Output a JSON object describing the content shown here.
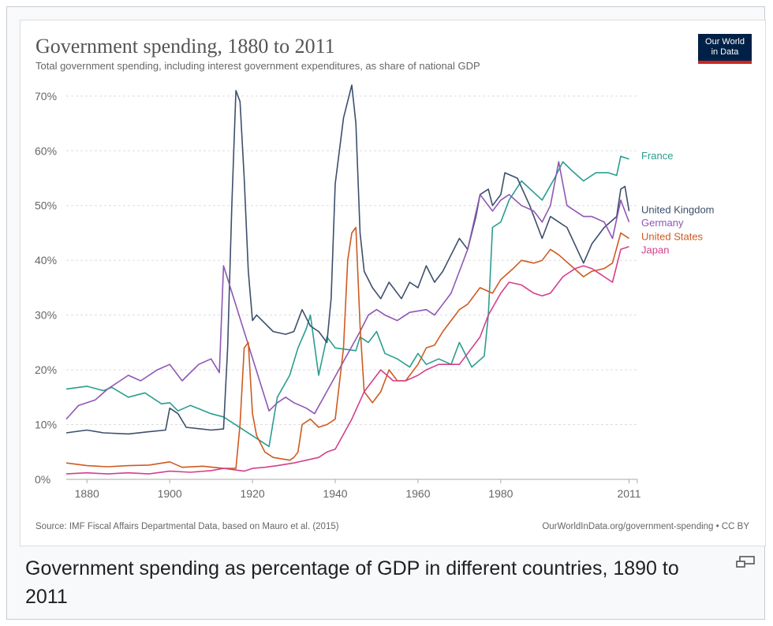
{
  "figure": {
    "caption": "Government spending as percentage of GDP in different countries, 1890 to 2011",
    "enlarge_icon": "magnify-clip-icon"
  },
  "logo": {
    "line1": "Our World",
    "line2": "in Data"
  },
  "footer": {
    "source": "Source: IMF Fiscal Affairs Departmental Data, based on Mauro et al. (2015)",
    "license": "OurWorldInData.org/government-spending • CC BY"
  },
  "chart_data": {
    "type": "line",
    "title": "Government spending, 1880 to 2011",
    "subtitle": "Total government spending, including interest government expenditures, as share of national GDP",
    "xlabel": "",
    "ylabel": "",
    "xlim": [
      1875,
      2013
    ],
    "ylim": [
      0,
      73
    ],
    "x_ticks": [
      1880,
      1900,
      1920,
      1940,
      1960,
      1980,
      2011
    ],
    "y_ticks": [
      0,
      10,
      20,
      30,
      40,
      50,
      60,
      70
    ],
    "y_tick_labels": [
      "0%",
      "10%",
      "20%",
      "30%",
      "40%",
      "50%",
      "60%",
      "70%"
    ],
    "grid": true,
    "legend": "inline-right",
    "series": [
      {
        "name": "France",
        "color": "#2a9d8f",
        "points": [
          [
            1875,
            16.5
          ],
          [
            1880,
            17
          ],
          [
            1884,
            16.2
          ],
          [
            1886,
            16.8
          ],
          [
            1890,
            15
          ],
          [
            1894,
            15.8
          ],
          [
            1898,
            13.8
          ],
          [
            1900,
            14
          ],
          [
            1902,
            12.5
          ],
          [
            1905,
            13.5
          ],
          [
            1910,
            12
          ],
          [
            1913,
            11.4
          ],
          [
            1924,
            6
          ],
          [
            1926,
            15
          ],
          [
            1929,
            19
          ],
          [
            1931,
            24
          ],
          [
            1933,
            27.5
          ],
          [
            1934,
            30
          ],
          [
            1936,
            19
          ],
          [
            1938,
            26
          ],
          [
            1940,
            24
          ],
          [
            1945,
            23.5
          ],
          [
            1946,
            26
          ],
          [
            1948,
            25
          ],
          [
            1950,
            27
          ],
          [
            1952,
            23
          ],
          [
            1955,
            22
          ],
          [
            1958,
            20.5
          ],
          [
            1960,
            23
          ],
          [
            1962,
            21
          ],
          [
            1965,
            22
          ],
          [
            1968,
            21
          ],
          [
            1970,
            25
          ],
          [
            1973,
            20.5
          ],
          [
            1976,
            22.5
          ],
          [
            1977,
            30
          ],
          [
            1978,
            46
          ],
          [
            1980,
            47
          ],
          [
            1982,
            51
          ],
          [
            1985,
            54.5
          ],
          [
            1990,
            51
          ],
          [
            1993,
            55
          ],
          [
            1995,
            58
          ],
          [
            1997,
            56.5
          ],
          [
            2000,
            54.5
          ],
          [
            2003,
            56
          ],
          [
            2006,
            56
          ],
          [
            2008,
            55.5
          ],
          [
            2009,
            59
          ],
          [
            2011,
            58.5
          ]
        ]
      },
      {
        "name": "United Kingdom",
        "color": "#3d4f6b",
        "points": [
          [
            1875,
            8.5
          ],
          [
            1880,
            9
          ],
          [
            1884,
            8.5
          ],
          [
            1890,
            8.3
          ],
          [
            1895,
            8.7
          ],
          [
            1899,
            9
          ],
          [
            1900,
            13
          ],
          [
            1902,
            12
          ],
          [
            1904,
            9.5
          ],
          [
            1910,
            9
          ],
          [
            1913,
            9.2
          ],
          [
            1914,
            24
          ],
          [
            1915,
            50
          ],
          [
            1916,
            71
          ],
          [
            1917,
            69
          ],
          [
            1918,
            55
          ],
          [
            1919,
            38
          ],
          [
            1920,
            29
          ],
          [
            1921,
            30
          ],
          [
            1925,
            27
          ],
          [
            1928,
            26.5
          ],
          [
            1930,
            27
          ],
          [
            1932,
            31
          ],
          [
            1934,
            28
          ],
          [
            1936,
            27
          ],
          [
            1938,
            25
          ],
          [
            1939,
            33
          ],
          [
            1940,
            54
          ],
          [
            1942,
            66
          ],
          [
            1944,
            72
          ],
          [
            1945,
            65
          ],
          [
            1946,
            45
          ],
          [
            1947,
            38
          ],
          [
            1949,
            35
          ],
          [
            1951,
            33
          ],
          [
            1953,
            36
          ],
          [
            1956,
            33
          ],
          [
            1958,
            36
          ],
          [
            1960,
            35
          ],
          [
            1962,
            39
          ],
          [
            1964,
            36
          ],
          [
            1966,
            38
          ],
          [
            1968,
            41
          ],
          [
            1970,
            44
          ],
          [
            1972,
            42
          ],
          [
            1974,
            48
          ],
          [
            1975,
            52
          ],
          [
            1977,
            53
          ],
          [
            1978,
            50
          ],
          [
            1980,
            52
          ],
          [
            1981,
            56
          ],
          [
            1984,
            55
          ],
          [
            1987,
            50
          ],
          [
            1990,
            44
          ],
          [
            1992,
            48
          ],
          [
            1994,
            47
          ],
          [
            1996,
            46
          ],
          [
            2000,
            39.5
          ],
          [
            2002,
            43
          ],
          [
            2005,
            46
          ],
          [
            2008,
            48
          ],
          [
            2009,
            53
          ],
          [
            2010,
            53.5
          ],
          [
            2011,
            49
          ]
        ]
      },
      {
        "name": "Germany",
        "color": "#8e57b4",
        "points": [
          [
            1875,
            11
          ],
          [
            1878,
            13.5
          ],
          [
            1882,
            14.5
          ],
          [
            1885,
            16.5
          ],
          [
            1888,
            18
          ],
          [
            1890,
            19
          ],
          [
            1893,
            18
          ],
          [
            1897,
            20
          ],
          [
            1900,
            21
          ],
          [
            1903,
            18
          ],
          [
            1907,
            21
          ],
          [
            1910,
            22
          ],
          [
            1912,
            19.5
          ],
          [
            1913,
            39
          ],
          [
            1924,
            12.5
          ],
          [
            1926,
            14
          ],
          [
            1928,
            15
          ],
          [
            1930,
            14
          ],
          [
            1933,
            13
          ],
          [
            1935,
            12
          ],
          [
            1946,
            27
          ],
          [
            1948,
            30
          ],
          [
            1950,
            31
          ],
          [
            1952,
            30
          ],
          [
            1955,
            29
          ],
          [
            1958,
            30.5
          ],
          [
            1962,
            31
          ],
          [
            1964,
            30
          ],
          [
            1966,
            32
          ],
          [
            1968,
            34
          ],
          [
            1970,
            38
          ],
          [
            1972,
            42
          ],
          [
            1975,
            52
          ],
          [
            1978,
            49
          ],
          [
            1980,
            51
          ],
          [
            1982,
            52
          ],
          [
            1985,
            50
          ],
          [
            1988,
            49
          ],
          [
            1990,
            47
          ],
          [
            1992,
            50
          ],
          [
            1994,
            58
          ],
          [
            1996,
            50
          ],
          [
            1998,
            49
          ],
          [
            2000,
            48
          ],
          [
            2002,
            48
          ],
          [
            2005,
            47
          ],
          [
            2007,
            44
          ],
          [
            2009,
            51
          ],
          [
            2011,
            47
          ]
        ]
      },
      {
        "name": "United States",
        "color": "#cf5a20",
        "points": [
          [
            1875,
            3
          ],
          [
            1880,
            2.5
          ],
          [
            1885,
            2.3
          ],
          [
            1890,
            2.5
          ],
          [
            1895,
            2.6
          ],
          [
            1900,
            3.2
          ],
          [
            1903,
            2.2
          ],
          [
            1908,
            2.4
          ],
          [
            1913,
            2
          ],
          [
            1916,
            2
          ],
          [
            1917,
            10
          ],
          [
            1918,
            24
          ],
          [
            1919,
            25
          ],
          [
            1920,
            12
          ],
          [
            1921,
            8
          ],
          [
            1923,
            5
          ],
          [
            1925,
            4
          ],
          [
            1929,
            3.5
          ],
          [
            1930,
            4
          ],
          [
            1931,
            5
          ],
          [
            1932,
            10
          ],
          [
            1934,
            11
          ],
          [
            1936,
            9.5
          ],
          [
            1938,
            10
          ],
          [
            1940,
            11
          ],
          [
            1942,
            24
          ],
          [
            1943,
            40
          ],
          [
            1944,
            45
          ],
          [
            1945,
            46
          ],
          [
            1946,
            28
          ],
          [
            1947,
            16
          ],
          [
            1949,
            14
          ],
          [
            1951,
            16
          ],
          [
            1953,
            20
          ],
          [
            1955,
            18
          ],
          [
            1957,
            18
          ],
          [
            1960,
            21
          ],
          [
            1962,
            24
          ],
          [
            1964,
            24.5
          ],
          [
            1966,
            27
          ],
          [
            1968,
            29
          ],
          [
            1970,
            31
          ],
          [
            1972,
            32
          ],
          [
            1975,
            35
          ],
          [
            1978,
            34
          ],
          [
            1980,
            36.5
          ],
          [
            1983,
            38.5
          ],
          [
            1985,
            40
          ],
          [
            1988,
            39.5
          ],
          [
            1990,
            40
          ],
          [
            1992,
            42
          ],
          [
            1994,
            41
          ],
          [
            1997,
            39
          ],
          [
            2000,
            37
          ],
          [
            2002,
            38
          ],
          [
            2005,
            38.5
          ],
          [
            2007,
            39.5
          ],
          [
            2009,
            45
          ],
          [
            2011,
            44
          ]
        ]
      },
      {
        "name": "Japan",
        "color": "#d43f8d",
        "points": [
          [
            1875,
            1
          ],
          [
            1880,
            1.2
          ],
          [
            1885,
            1
          ],
          [
            1890,
            1.2
          ],
          [
            1895,
            1
          ],
          [
            1900,
            1.5
          ],
          [
            1905,
            1.3
          ],
          [
            1910,
            1.6
          ],
          [
            1913,
            2
          ],
          [
            1918,
            1.5
          ],
          [
            1920,
            2
          ],
          [
            1923,
            2.2
          ],
          [
            1926,
            2.5
          ],
          [
            1930,
            3
          ],
          [
            1933,
            3.5
          ],
          [
            1936,
            4
          ],
          [
            1938,
            5
          ],
          [
            1940,
            5.5
          ],
          [
            1944,
            11
          ],
          [
            1947,
            16
          ],
          [
            1949,
            18
          ],
          [
            1951,
            20
          ],
          [
            1954,
            18
          ],
          [
            1957,
            18
          ],
          [
            1960,
            19
          ],
          [
            1962,
            20
          ],
          [
            1965,
            21
          ],
          [
            1968,
            21
          ],
          [
            1970,
            21
          ],
          [
            1972,
            23
          ],
          [
            1975,
            26
          ],
          [
            1977,
            30
          ],
          [
            1980,
            34
          ],
          [
            1982,
            36
          ],
          [
            1985,
            35.5
          ],
          [
            1988,
            34
          ],
          [
            1990,
            33.5
          ],
          [
            1992,
            34
          ],
          [
            1995,
            37
          ],
          [
            1998,
            38.5
          ],
          [
            2000,
            39
          ],
          [
            2002,
            38.5
          ],
          [
            2005,
            37
          ],
          [
            2007,
            36
          ],
          [
            2009,
            42
          ],
          [
            2011,
            42.5
          ]
        ]
      }
    ]
  }
}
